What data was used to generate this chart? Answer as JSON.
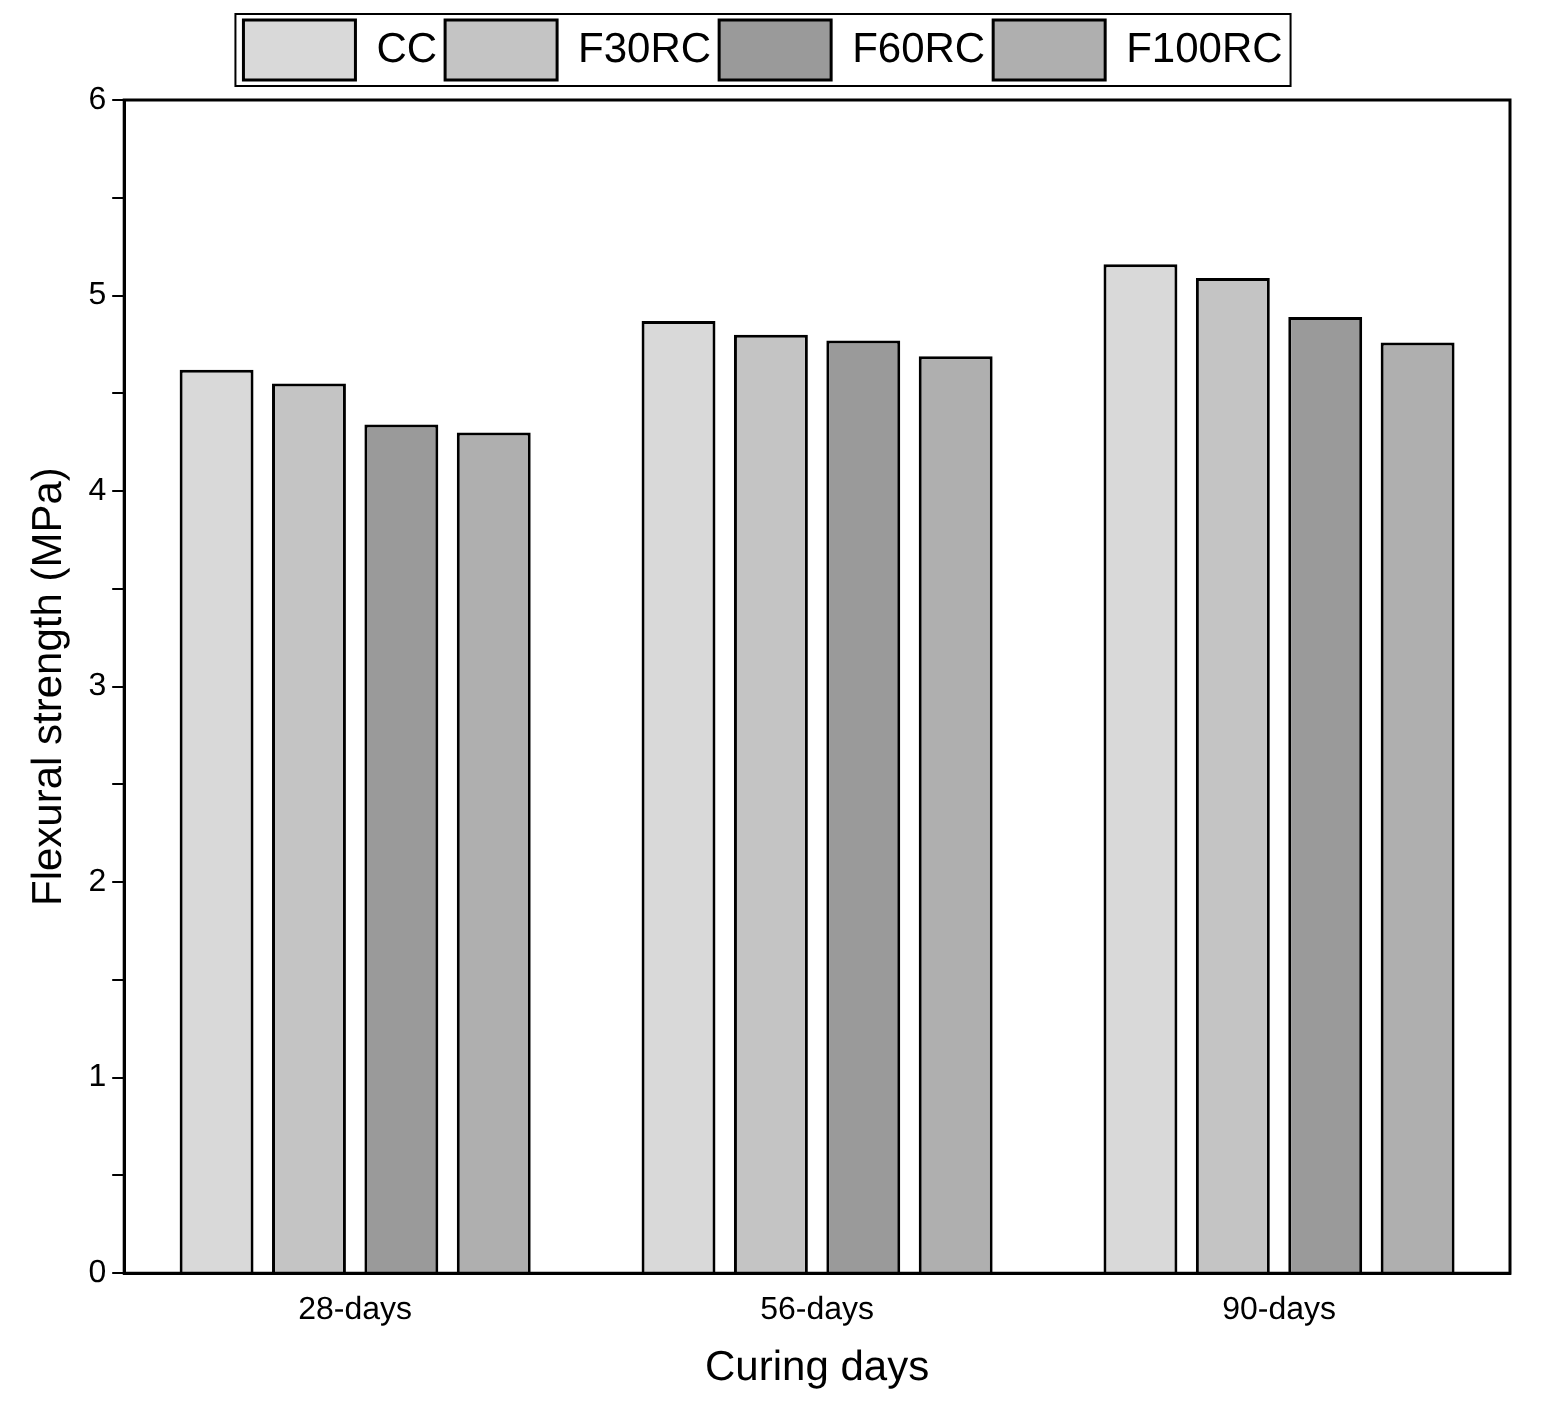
{
  "chart_data": {
    "type": "bar",
    "xlabel": "Curing days",
    "ylabel": "Flexural strength (MPa)",
    "categories": [
      "28-days",
      "56-days",
      "90-days"
    ],
    "series": [
      {
        "name": "CC",
        "color": "#d9d9d9",
        "values": [
          4.62,
          4.87,
          5.16
        ]
      },
      {
        "name": "F30RC",
        "color": "#c4c4c4",
        "values": [
          4.55,
          4.8,
          5.09
        ]
      },
      {
        "name": "F60RC",
        "color": "#9a9a9a",
        "values": [
          4.34,
          4.77,
          4.89
        ]
      },
      {
        "name": "F100RC",
        "color": "#afafaf",
        "values": [
          4.3,
          4.69,
          4.76
        ]
      }
    ],
    "ylim": [
      0,
      6
    ],
    "yticks": [
      0,
      {
        "value": 0.5,
        "label": null
      },
      1,
      {
        "value": 1.5,
        "label": null
      },
      2,
      {
        "value": 2.5,
        "label": null
      },
      3,
      {
        "value": 3.5,
        "label": null
      },
      4,
      {
        "value": 4.5,
        "label": null
      },
      5,
      {
        "value": 5.5,
        "label": null
      },
      6
    ],
    "grid": false,
    "legend": "top"
  }
}
